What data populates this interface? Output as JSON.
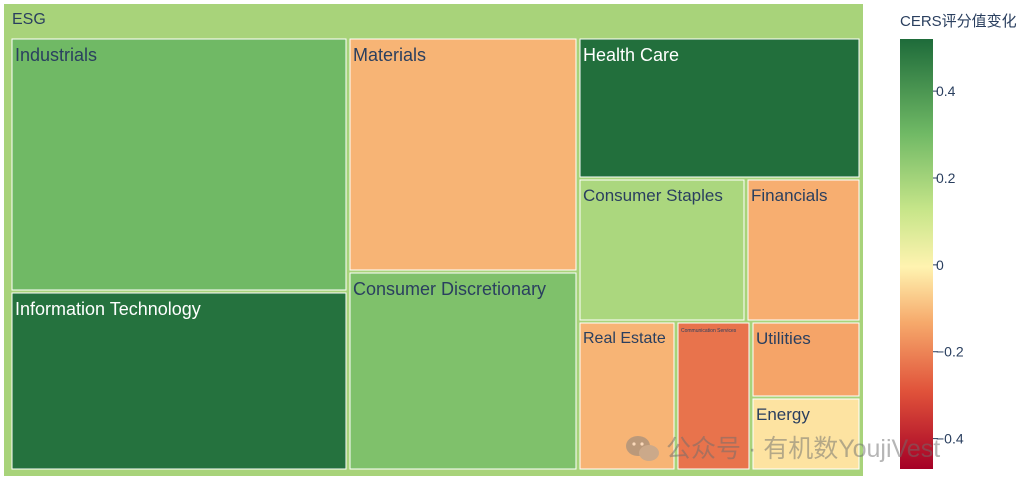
{
  "chart_data": {
    "type": "treemap",
    "root_label": "ESG",
    "root_value": 0.18,
    "sectors": [
      {
        "label": "Industrials",
        "value": 0.3
      },
      {
        "label": "Information Technology",
        "value": 0.5
      },
      {
        "label": "Materials",
        "value": -0.12
      },
      {
        "label": "Consumer Discretionary",
        "value": 0.27
      },
      {
        "label": "Health Care",
        "value": 0.51
      },
      {
        "label": "Consumer Staples",
        "value": 0.18
      },
      {
        "label": "Financials",
        "value": -0.13
      },
      {
        "label": "Real Estate",
        "value": -0.12
      },
      {
        "label": "Communication Services",
        "value": -0.24
      },
      {
        "label": "Utilities",
        "value": -0.15
      },
      {
        "label": "Energy",
        "value": -0.03
      }
    ],
    "colorbar": {
      "title": "CERS评分值变化",
      "ticks": [
        0.4,
        0.2,
        0,
        -0.2,
        -0.4
      ],
      "tick_labels": [
        "0.4",
        "0.2",
        "0",
        "−0.2",
        "−0.4"
      ],
      "range": [
        -0.47,
        0.52
      ],
      "colorscale": "RdYlGn"
    }
  },
  "watermark": "公众号 · 有机数YoujiVest"
}
